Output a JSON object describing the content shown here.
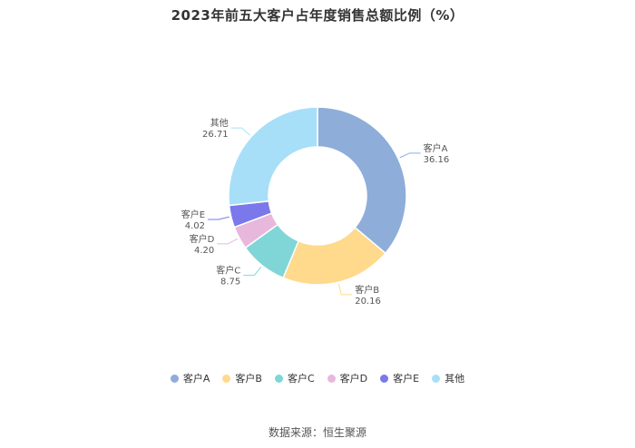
{
  "chart_data": {
    "type": "pie",
    "donut": true,
    "title": "2023年前五大客户占年度销售总额比例（%）",
    "categories": [
      "客户A",
      "客户B",
      "客户C",
      "客户D",
      "客户E",
      "其他"
    ],
    "values": [
      36.16,
      20.16,
      8.75,
      4.2,
      4.02,
      26.71
    ],
    "value_labels": [
      "36.16",
      "20.16",
      "8.75",
      "4.20",
      "4.02",
      "26.71"
    ],
    "colors": [
      "#8eadd9",
      "#ffd98c",
      "#80d6d6",
      "#e8b8dc",
      "#7a78eb",
      "#a8dff8"
    ],
    "legend_position": "bottom"
  },
  "footer": {
    "source": "数据来源：恒生聚源"
  }
}
